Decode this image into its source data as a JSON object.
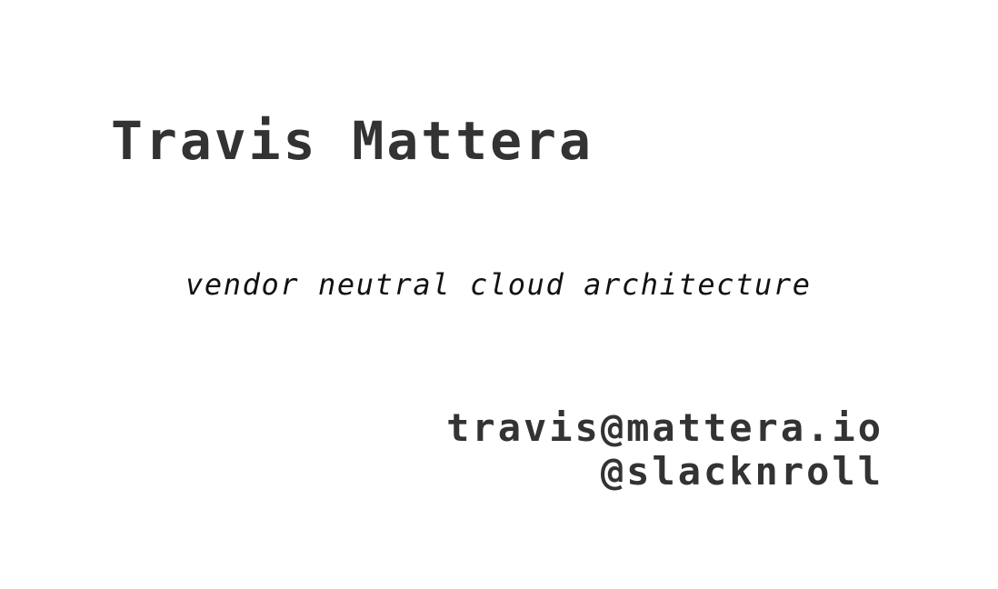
{
  "card": {
    "name": "Travis Mattera",
    "tagline": "vendor neutral cloud architecture",
    "contact": {
      "email": "travis@mattera.io",
      "handle": "@slacknroll"
    }
  },
  "colors": {
    "background": "#ffffff",
    "text": "#333333"
  }
}
